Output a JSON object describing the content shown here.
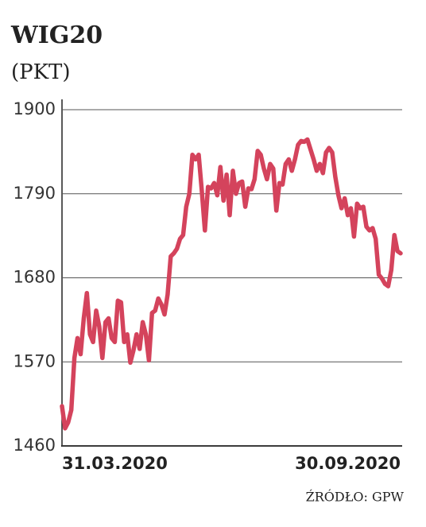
{
  "chart_data": {
    "type": "line",
    "title": "WIG20",
    "subtitle": "(PKT)",
    "source": "ŹRÓDŁO: GPW",
    "categories": [
      "31.03.2020",
      null,
      null,
      null,
      null,
      null,
      null,
      null,
      null,
      null,
      null,
      null,
      null,
      null,
      null,
      null,
      null,
      null,
      null,
      null,
      null,
      null,
      null,
      null,
      null,
      null,
      null,
      null,
      null,
      null,
      null,
      null,
      null,
      null,
      null,
      null,
      null,
      null,
      null,
      null,
      null,
      null,
      null,
      null,
      null,
      null,
      null,
      null,
      null,
      null,
      null,
      null,
      null,
      null,
      null,
      null,
      null,
      null,
      null,
      null,
      null,
      null,
      null,
      null,
      null,
      null,
      null,
      null,
      null,
      null,
      null,
      null,
      null,
      null,
      null,
      null,
      null,
      null,
      null,
      null,
      null,
      null,
      null,
      null,
      null,
      null,
      null,
      null,
      null,
      null,
      null,
      null,
      null,
      null,
      null,
      null,
      null,
      null,
      null,
      null,
      null,
      null,
      null,
      null,
      null,
      null,
      null,
      null,
      null,
      "30.09.2020"
    ],
    "series": [
      {
        "name": "WIG20",
        "color": "#d4435c",
        "values": [
          1512,
          1483,
          1491,
          1507,
          1575,
          1601,
          1580,
          1627,
          1660,
          1606,
          1596,
          1637,
          1616,
          1575,
          1622,
          1627,
          1601,
          1596,
          1650,
          1648,
          1596,
          1606,
          1569,
          1585,
          1606,
          1587,
          1622,
          1606,
          1572,
          1634,
          1637,
          1653,
          1645,
          1632,
          1658,
          1708,
          1712,
          1718,
          1731,
          1736,
          1773,
          1790,
          1841,
          1835,
          1841,
          1794,
          1742,
          1799,
          1797,
          1804,
          1788,
          1825,
          1781,
          1815,
          1762,
          1820,
          1790,
          1804,
          1806,
          1773,
          1797,
          1796,
          1809,
          1846,
          1841,
          1823,
          1809,
          1829,
          1823,
          1768,
          1804,
          1802,
          1829,
          1835,
          1820,
          1835,
          1854,
          1859,
          1858,
          1861,
          1848,
          1835,
          1820,
          1829,
          1817,
          1844,
          1850,
          1844,
          1812,
          1788,
          1771,
          1784,
          1762,
          1771,
          1734,
          1777,
          1771,
          1773,
          1747,
          1742,
          1745,
          1731,
          1684,
          1679,
          1672,
          1669,
          1690,
          1736,
          1715,
          1712
        ]
      }
    ],
    "ylim": [
      1460,
      1900
    ],
    "yticks": [
      1460,
      1570,
      1680,
      1790,
      1900
    ],
    "grid": true
  }
}
